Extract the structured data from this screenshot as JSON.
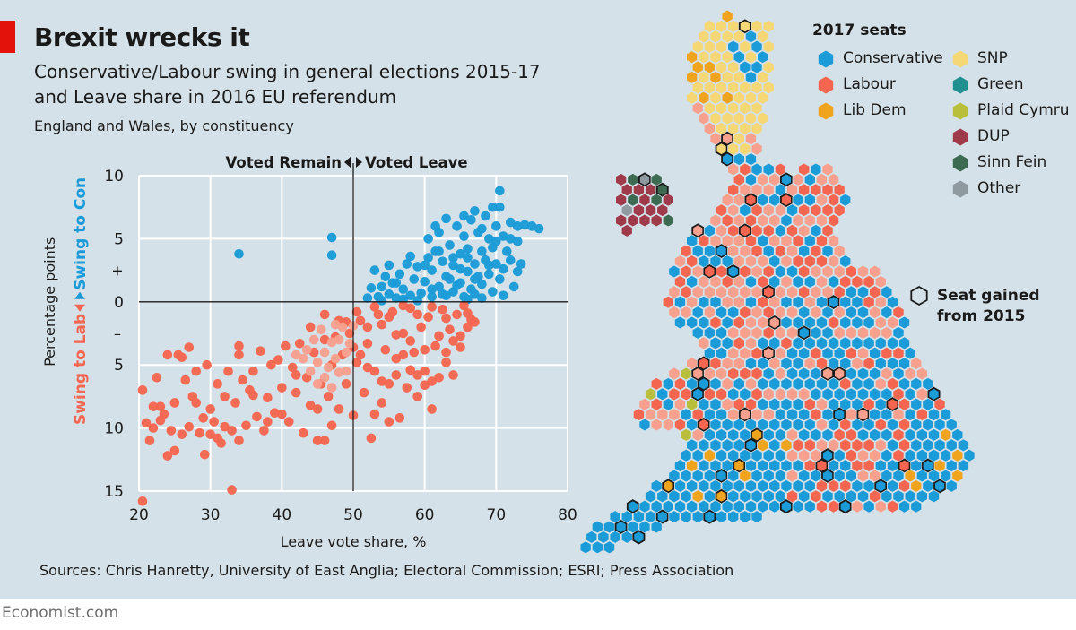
{
  "header": {
    "title": "Brexit wrecks it",
    "subtitle_line1": "Conservative/Labour swing in general elections 2015-17",
    "subtitle_line2": "and Leave share in 2016 EU referendum",
    "note": "England and Wales, by constituency"
  },
  "source": "Sources: Chris Hanretty, University of East Anglia; Electoral Commission; ESRI; Press Association",
  "footer": "Economist.com",
  "colors": {
    "panel": "#d5e1e8",
    "conservative": "#1b9bd7",
    "labour": "#f4664f",
    "labour_light": "#f7a08e",
    "red_tag": "#e3120b"
  },
  "chart_data": {
    "type": "scatter",
    "xlabel": "Leave vote share, %",
    "ylabel": "Percentage points",
    "xlim": [
      20,
      80
    ],
    "ylim": [
      -15,
      10
    ],
    "xticks": [
      "20",
      "30",
      "40",
      "50",
      "60",
      "70",
      "80"
    ],
    "yticks": [
      {
        "value": 10,
        "label": "10"
      },
      {
        "value": 5,
        "label": "5"
      },
      {
        "value": 0,
        "label": "0"
      },
      {
        "value": -5,
        "label": "5"
      },
      {
        "value": -10,
        "label": "10"
      },
      {
        "value": -15,
        "label": "15"
      }
    ],
    "sign_plus": "+",
    "sign_minus": "–",
    "grid": true,
    "annotations": {
      "remain": "Voted Remain",
      "leave": "Voted Leave",
      "swing_lab": "Swing to Lab",
      "swing_con": "Swing to Con"
    },
    "series": [
      {
        "name": "Swing to Con",
        "color": "#1b9bd7",
        "points": [
          [
            34,
            3.8
          ],
          [
            47,
            5.1
          ],
          [
            47,
            3.7
          ],
          [
            52,
            0.3
          ],
          [
            52.5,
            1.1
          ],
          [
            53,
            2.5
          ],
          [
            53.5,
            0.4
          ],
          [
            54,
            1.2
          ],
          [
            54.5,
            2.0
          ],
          [
            55,
            0.6
          ],
          [
            55.5,
            1.5
          ],
          [
            56,
            0.3
          ],
          [
            56.5,
            2.2
          ],
          [
            57,
            1.0
          ],
          [
            57.5,
            3.0
          ],
          [
            58,
            0.5
          ],
          [
            58.5,
            1.8
          ],
          [
            59,
            2.8
          ],
          [
            59.5,
            0.7
          ],
          [
            60,
            1.6
          ],
          [
            60.5,
            3.5
          ],
          [
            60.5,
            5.0
          ],
          [
            61,
            0.4
          ],
          [
            61,
            2.5
          ],
          [
            61.5,
            4.0
          ],
          [
            62,
            1.2
          ],
          [
            62,
            5.5
          ],
          [
            62.5,
            0.6
          ],
          [
            62.5,
            3.2
          ],
          [
            63,
            2.0
          ],
          [
            63.5,
            4.5
          ],
          [
            64,
            0.8
          ],
          [
            64,
            2.9
          ],
          [
            64.5,
            6.0
          ],
          [
            65,
            1.5
          ],
          [
            65,
            3.8
          ],
          [
            65.5,
            0.4
          ],
          [
            65.5,
            5.2
          ],
          [
            66,
            2.4
          ],
          [
            66,
            4.2
          ],
          [
            66.5,
            1.0
          ],
          [
            66.5,
            6.5
          ],
          [
            67,
            3.0
          ],
          [
            67,
            0.6
          ],
          [
            67.5,
            5.5
          ],
          [
            67.5,
            2.0
          ],
          [
            68,
            4.0
          ],
          [
            68,
            1.4
          ],
          [
            68.5,
            6.8
          ],
          [
            68.5,
            3.3
          ],
          [
            69,
            2.2
          ],
          [
            69,
            5.0
          ],
          [
            69.5,
            0.8
          ],
          [
            69.5,
            4.3
          ],
          [
            70,
            3.0
          ],
          [
            70,
            6.0
          ],
          [
            70.5,
            8.8
          ],
          [
            70.5,
            7.5
          ],
          [
            70.5,
            1.8
          ],
          [
            71,
            5.2
          ],
          [
            71,
            2.6
          ],
          [
            71.5,
            4.0
          ],
          [
            72,
            6.3
          ],
          [
            72,
            3.3
          ],
          [
            72.5,
            1.2
          ],
          [
            73,
            4.8
          ],
          [
            73,
            6.0
          ],
          [
            73.5,
            3.0
          ],
          [
            74,
            6.1
          ],
          [
            75,
            6.0
          ],
          [
            76,
            5.8
          ],
          [
            63,
            0.5
          ],
          [
            64.5,
            1.3
          ],
          [
            66,
            0.2
          ],
          [
            68,
            0.3
          ],
          [
            71,
            0.5
          ],
          [
            54,
            0.1
          ],
          [
            57,
            0.2
          ],
          [
            59,
            0.1
          ],
          [
            61,
            1.0
          ],
          [
            63.5,
            1.8
          ],
          [
            65,
            2.6
          ],
          [
            67,
            1.8
          ],
          [
            69,
            2.9
          ],
          [
            70,
            4.8
          ],
          [
            72,
            5.0
          ],
          [
            73,
            2.4
          ],
          [
            60,
            2.9
          ],
          [
            62,
            4.0
          ],
          [
            64,
            3.5
          ],
          [
            66,
            3.5
          ],
          [
            68,
            5.8
          ],
          [
            58,
            3.6
          ],
          [
            56,
            1.5
          ],
          [
            55,
            2.9
          ],
          [
            61.5,
            6.0
          ],
          [
            63,
            6.6
          ],
          [
            65.5,
            6.8
          ],
          [
            67,
            7.2
          ],
          [
            69.5,
            7.5
          ]
        ]
      },
      {
        "name": "Swing to Lab",
        "color": "#f4664f",
        "points": [
          [
            20.5,
            -15.8
          ],
          [
            20.5,
            -7.0
          ],
          [
            21,
            -9.6
          ],
          [
            21.5,
            -11.0
          ],
          [
            22,
            -8.3
          ],
          [
            22.5,
            -6.0
          ],
          [
            23,
            -9.4
          ],
          [
            23.5,
            -8.9
          ],
          [
            24,
            -12.2
          ],
          [
            24.5,
            -10.2
          ],
          [
            25,
            -8.0
          ],
          [
            25,
            -11.8
          ],
          [
            25.5,
            -4.2
          ],
          [
            26,
            -10.5
          ],
          [
            26,
            -4.4
          ],
          [
            26.5,
            -6.2
          ],
          [
            27,
            -9.9
          ],
          [
            27.5,
            -7.5
          ],
          [
            28,
            -8.0
          ],
          [
            28.5,
            -10.4
          ],
          [
            29,
            -9.2
          ],
          [
            29.2,
            -12.1
          ],
          [
            29.5,
            -5.0
          ],
          [
            30,
            -8.5
          ],
          [
            30.5,
            -9.5
          ],
          [
            31,
            -10.8
          ],
          [
            31,
            -6.5
          ],
          [
            31.5,
            -11.2
          ],
          [
            32,
            -7.5
          ],
          [
            32.5,
            -5.5
          ],
          [
            33,
            -10.2
          ],
          [
            33,
            -14.9
          ],
          [
            33.5,
            -8.0
          ],
          [
            34,
            -11.0
          ],
          [
            34,
            -4.2
          ],
          [
            34.5,
            -6.2
          ],
          [
            35,
            -9.8
          ],
          [
            35.5,
            -7.0
          ],
          [
            36,
            -5.5
          ],
          [
            36.5,
            -9.1
          ],
          [
            37,
            -3.9
          ],
          [
            37.5,
            -10.2
          ],
          [
            38,
            -7.6
          ],
          [
            38.5,
            -5.0
          ],
          [
            39,
            -8.8
          ],
          [
            39.5,
            -4.6
          ],
          [
            40,
            -6.8
          ],
          [
            40.5,
            -3.5
          ],
          [
            41,
            -9.5
          ],
          [
            41.5,
            -5.2
          ],
          [
            42,
            -7.2
          ],
          [
            42.5,
            -3.3
          ],
          [
            43,
            -10.4
          ],
          [
            43.5,
            -6.0
          ],
          [
            44,
            -8.2
          ],
          [
            44.5,
            -4.0
          ],
          [
            45,
            -11.0
          ],
          [
            45.5,
            -6.5
          ],
          [
            46,
            -3.0
          ],
          [
            46.5,
            -7.5
          ],
          [
            47,
            -5.0
          ],
          [
            47.5,
            -2.8
          ],
          [
            48,
            -8.5
          ],
          [
            48.5,
            -4.2
          ],
          [
            49,
            -6.5
          ],
          [
            49.5,
            -2.5
          ],
          [
            50,
            -9.0
          ],
          [
            50.5,
            -4.8
          ],
          [
            51,
            -1.5
          ],
          [
            51.5,
            -7.2
          ],
          [
            52,
            -3.3
          ],
          [
            52.5,
            -10.8
          ],
          [
            53,
            -5.5
          ],
          [
            53.5,
            -1.0
          ],
          [
            54,
            -8.0
          ],
          [
            54.5,
            -3.8
          ],
          [
            55,
            -6.5
          ],
          [
            55.5,
            -0.8
          ],
          [
            56,
            -4.5
          ],
          [
            56.5,
            -9.2
          ],
          [
            57,
            -2.5
          ],
          [
            57.5,
            -6.8
          ],
          [
            58,
            -0.5
          ],
          [
            58.5,
            -4.0
          ],
          [
            59,
            -7.5
          ],
          [
            59.5,
            -2.0
          ],
          [
            60,
            -5.5
          ],
          [
            60.5,
            -1.2
          ],
          [
            61,
            -8.5
          ],
          [
            61.5,
            -3.5
          ],
          [
            62,
            -6.0
          ],
          [
            62.5,
            -0.6
          ],
          [
            63,
            -4.8
          ],
          [
            63.5,
            -2.2
          ],
          [
            64,
            -5.8
          ],
          [
            64.5,
            -1.0
          ],
          [
            65,
            -3.6
          ],
          [
            65.5,
            -0.3
          ],
          [
            66,
            -2.0
          ],
          [
            66.5,
            -1.4
          ],
          [
            54,
            -1.8
          ],
          [
            56,
            -2.6
          ],
          [
            58,
            -3.1
          ],
          [
            60,
            -3.8
          ],
          [
            52,
            -2.0
          ],
          [
            50.5,
            -0.8
          ],
          [
            53,
            -0.4
          ],
          [
            55,
            -1.2
          ],
          [
            57,
            -0.3
          ],
          [
            59,
            -1.0
          ],
          [
            61,
            -0.4
          ],
          [
            63,
            -1.3
          ],
          [
            62,
            -2.7
          ],
          [
            64,
            -3.1
          ],
          [
            60,
            -6.6
          ],
          [
            58,
            -5.4
          ],
          [
            56,
            -5.8
          ],
          [
            54,
            -6.3
          ],
          [
            52,
            -5.2
          ],
          [
            50,
            -3.6
          ],
          [
            48,
            -1.5
          ],
          [
            46,
            -1.0
          ],
          [
            44,
            -2.0
          ],
          [
            42,
            -5.8
          ],
          [
            40,
            -8.9
          ],
          [
            38,
            -9.5
          ],
          [
            36,
            -7.4
          ],
          [
            34,
            -3.5
          ],
          [
            32,
            -9.9
          ],
          [
            30,
            -10.5
          ],
          [
            28,
            -5.5
          ],
          [
            24,
            -4.2
          ],
          [
            23,
            -8.3
          ],
          [
            22,
            -10.0
          ],
          [
            27,
            -3.6
          ],
          [
            45,
            -8.5
          ],
          [
            47,
            -9.8
          ],
          [
            49,
            -1.6
          ],
          [
            51,
            -4.2
          ],
          [
            53,
            -8.9
          ],
          [
            55,
            -9.5
          ],
          [
            57,
            -4.2
          ],
          [
            59,
            -5.8
          ],
          [
            61,
            -6.3
          ],
          [
            63,
            -4.0
          ],
          [
            65,
            -2.7
          ],
          [
            66,
            -0.9
          ],
          [
            67,
            -1.6
          ],
          [
            46,
            -11.0
          ]
        ]
      },
      {
        "name": "Swing to Lab",
        "color": "#f7a08e",
        "points": [
          [
            43,
            -4.5
          ],
          [
            44,
            -5.5
          ],
          [
            44.5,
            -3.0
          ],
          [
            45,
            -4.8
          ],
          [
            45.5,
            -2.2
          ],
          [
            46,
            -6.0
          ],
          [
            46,
            -4.0
          ],
          [
            46.5,
            -5.2
          ],
          [
            47,
            -3.2
          ],
          [
            47.5,
            -4.5
          ],
          [
            47.5,
            -1.8
          ],
          [
            48,
            -5.6
          ],
          [
            48,
            -3.0
          ],
          [
            48.5,
            -2.0
          ],
          [
            49,
            -4.0
          ],
          [
            49,
            -5.5
          ],
          [
            49.5,
            -3.3
          ],
          [
            50,
            -1.9
          ],
          [
            45,
            -6.5
          ],
          [
            43.5,
            -3.8
          ],
          [
            42,
            -4.2
          ],
          [
            47,
            -6.8
          ]
        ]
      }
    ]
  },
  "map": {
    "legend_title": "2017 seats",
    "legend_items": [
      {
        "label": "Conservative",
        "color": "#1b9bd7"
      },
      {
        "label": "Labour",
        "color": "#f4664f"
      },
      {
        "label": "Lib Dem",
        "color": "#f0a31c"
      },
      {
        "label": "SNP",
        "color": "#f5d775"
      },
      {
        "label": "Green",
        "color": "#1f8f8f"
      },
      {
        "label": "Plaid Cymru",
        "color": "#b9bf3b"
      },
      {
        "label": "DUP",
        "color": "#9e3a4a"
      },
      {
        "label": "Sinn Fein",
        "color": "#3c6b52"
      },
      {
        "label": "Other",
        "color": "#8e9aa0"
      }
    ],
    "gained_label_line1": "Seat gained",
    "gained_label_line2": "from 2015"
  }
}
